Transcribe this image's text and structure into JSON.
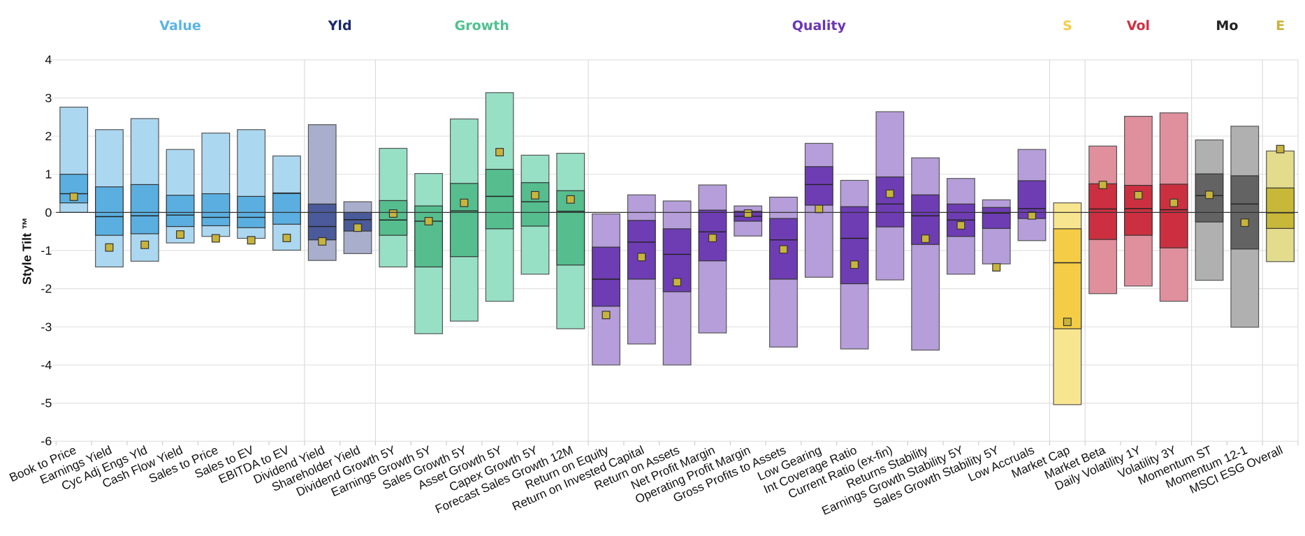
{
  "chart_data": {
    "type": "box",
    "title": "",
    "ylabel": "Style Tilt ™",
    "xlabel": "",
    "ylim": [
      -6,
      4
    ],
    "yticks": [
      "4",
      "3",
      "2",
      "1",
      "0",
      "-1",
      "-2",
      "-3",
      "-4",
      "-5",
      "-6"
    ],
    "grid": true,
    "marker_color": "#c8b43c",
    "groups": [
      {
        "name": "Value",
        "count": 7,
        "label_color": "#5ab4e6",
        "light": "#acd7f0",
        "dark": "#5aafe0"
      },
      {
        "name": "Yld",
        "count": 2,
        "label_color": "#1a2a6c",
        "light": "#a8aecb",
        "dark": "#4a5a9a"
      },
      {
        "name": "Growth",
        "count": 6,
        "label_color": "#50c090",
        "light": "#97e0c6",
        "dark": "#55bd8e"
      },
      {
        "name": "Quality",
        "count": 13,
        "label_color": "#6a35b5",
        "light": "#b59ed9",
        "dark": "#6e3db4"
      },
      {
        "name": "S",
        "count": 1,
        "label_color": "#f5cc45",
        "light": "#f8e58f",
        "dark": "#f5cc45"
      },
      {
        "name": "Vol",
        "count": 3,
        "label_color": "#d03040",
        "light": "#e08f9c",
        "dark": "#cc3040"
      },
      {
        "name": "Mo",
        "count": 2,
        "label_color": "#222222",
        "light": "#b0b0b0",
        "dark": "#636363"
      },
      {
        "name": "E",
        "count": 1,
        "label_color": "#c8b43c",
        "light": "#e2dc8c",
        "dark": "#c8b83a"
      }
    ],
    "series_fields": [
      "low",
      "q1",
      "median",
      "q3",
      "high",
      "marker"
    ],
    "items": [
      {
        "label": "Book to Price",
        "values": [
          0,
          0.25,
          0.49,
          1.0,
          2.76,
          0.41
        ]
      },
      {
        "label": "Earnings Yield",
        "values": [
          -1.43,
          -0.6,
          -0.11,
          0.67,
          2.17,
          -0.92
        ]
      },
      {
        "label": "Cyc Adj Engs Yld",
        "values": [
          -1.28,
          -0.56,
          -0.09,
          0.73,
          2.46,
          -0.85
        ]
      },
      {
        "label": "Cash Flow Yield",
        "values": [
          -0.8,
          -0.37,
          -0.07,
          0.45,
          1.65,
          -0.58
        ]
      },
      {
        "label": "Sales to Price",
        "values": [
          -0.63,
          -0.35,
          -0.13,
          0.49,
          2.08,
          -0.68
        ]
      },
      {
        "label": "Sales to EV",
        "values": [
          -0.68,
          -0.4,
          -0.13,
          0.42,
          2.17,
          -0.73
        ]
      },
      {
        "label": "EBITDA to EV",
        "values": [
          -0.99,
          -0.31,
          0.5,
          0.51,
          1.48,
          -0.67
        ]
      },
      {
        "label": "Dividend Yield",
        "values": [
          -1.26,
          -0.72,
          -0.37,
          0.22,
          2.3,
          -0.76
        ]
      },
      {
        "label": "Shareholder Yield",
        "values": [
          -1.08,
          -0.49,
          -0.19,
          0,
          0.28,
          -0.4
        ]
      },
      {
        "label": "Dividend Growth 5Y",
        "values": [
          -1.43,
          -0.6,
          -0.2,
          0.31,
          1.68,
          -0.03
        ]
      },
      {
        "label": "Earnings Growth 5Y",
        "values": [
          -3.18,
          -1.43,
          -0.23,
          0.17,
          1.02,
          -0.23
        ]
      },
      {
        "label": "Sales Growth 5Y",
        "values": [
          -2.85,
          -1.16,
          0.04,
          0.76,
          2.45,
          0.25
        ]
      },
      {
        "label": "Asset Growth 5Y",
        "values": [
          -2.33,
          -0.43,
          0.42,
          1.13,
          3.14,
          1.58
        ]
      },
      {
        "label": "Capex Growth 5Y",
        "values": [
          -1.62,
          -0.36,
          0.28,
          0.78,
          1.5,
          0.45
        ]
      },
      {
        "label": "Forecast Sales Growth 12M",
        "values": [
          -3.05,
          -1.38,
          0.03,
          0.57,
          1.55,
          0.34
        ]
      },
      {
        "label": "Return on Equity",
        "values": [
          -4.0,
          -2.46,
          -1.75,
          -0.91,
          -0.04,
          -2.69
        ]
      },
      {
        "label": "Return on Invested Capital",
        "values": [
          -3.45,
          -1.75,
          -0.78,
          -0.21,
          0.46,
          -1.17
        ]
      },
      {
        "label": "Return on Assets",
        "values": [
          -4.0,
          -2.08,
          -1.1,
          -0.43,
          0.3,
          -1.83
        ]
      },
      {
        "label": "Net Profit Margin",
        "values": [
          -3.16,
          -1.27,
          -0.51,
          0.06,
          0.72,
          -0.67
        ]
      },
      {
        "label": "Operating Profit Margin",
        "values": [
          -0.62,
          -0.23,
          -0.1,
          0.03,
          0.17,
          -0.03
        ]
      },
      {
        "label": "Gross Profits to Assets",
        "values": [
          -3.53,
          -1.75,
          -0.72,
          -0.16,
          0.4,
          -0.97
        ]
      },
      {
        "label": "Low Gearing",
        "values": [
          -1.7,
          0.19,
          0.73,
          1.2,
          1.81,
          0.09
        ]
      },
      {
        "label": "Int Coverage Ratio",
        "values": [
          -3.58,
          -1.87,
          -0.68,
          0.15,
          0.84,
          -1.37
        ]
      },
      {
        "label": "Current Ratio (ex-fin)",
        "values": [
          -1.77,
          -0.38,
          0.22,
          0.93,
          2.64,
          0.49
        ]
      },
      {
        "label": "Returns Stability",
        "values": [
          -3.61,
          -0.84,
          -0.09,
          0.46,
          1.43,
          -0.69
        ]
      },
      {
        "label": "Earnings Growth Stability 5Y",
        "values": [
          -1.62,
          -0.63,
          -0.2,
          0.22,
          0.89,
          -0.34
        ]
      },
      {
        "label": "Sales Growth Stability 5Y",
        "values": [
          -1.35,
          -0.42,
          -0.02,
          0.13,
          0.33,
          -1.44
        ]
      },
      {
        "label": "Low Accruals",
        "values": [
          -0.74,
          -0.16,
          0.1,
          0.83,
          1.65,
          -0.08
        ]
      },
      {
        "label": "Market Cap",
        "values": [
          -5.04,
          -3.05,
          -1.32,
          -0.43,
          0.25,
          -2.87
        ]
      },
      {
        "label": "Market Beta",
        "values": [
          -2.13,
          -0.71,
          0.09,
          0.75,
          1.74,
          0.72
        ]
      },
      {
        "label": "Daily Volatility 1Y",
        "values": [
          -1.93,
          -0.6,
          0.1,
          0.71,
          2.52,
          0.45
        ]
      },
      {
        "label": "Volatility 3Y",
        "values": [
          -2.33,
          -0.93,
          0.07,
          0.74,
          2.61,
          0.25
        ]
      },
      {
        "label": "Momentum ST",
        "values": [
          -1.78,
          -0.25,
          0.44,
          1.01,
          1.9,
          0.46
        ]
      },
      {
        "label": "Momentum 12-1",
        "values": [
          -3.01,
          -0.96,
          0.22,
          0.96,
          2.26,
          -0.27
        ]
      },
      {
        "label": "MSCI ESG Overall",
        "values": [
          -1.29,
          -0.42,
          -0.01,
          0.64,
          1.61,
          1.66
        ]
      }
    ]
  }
}
